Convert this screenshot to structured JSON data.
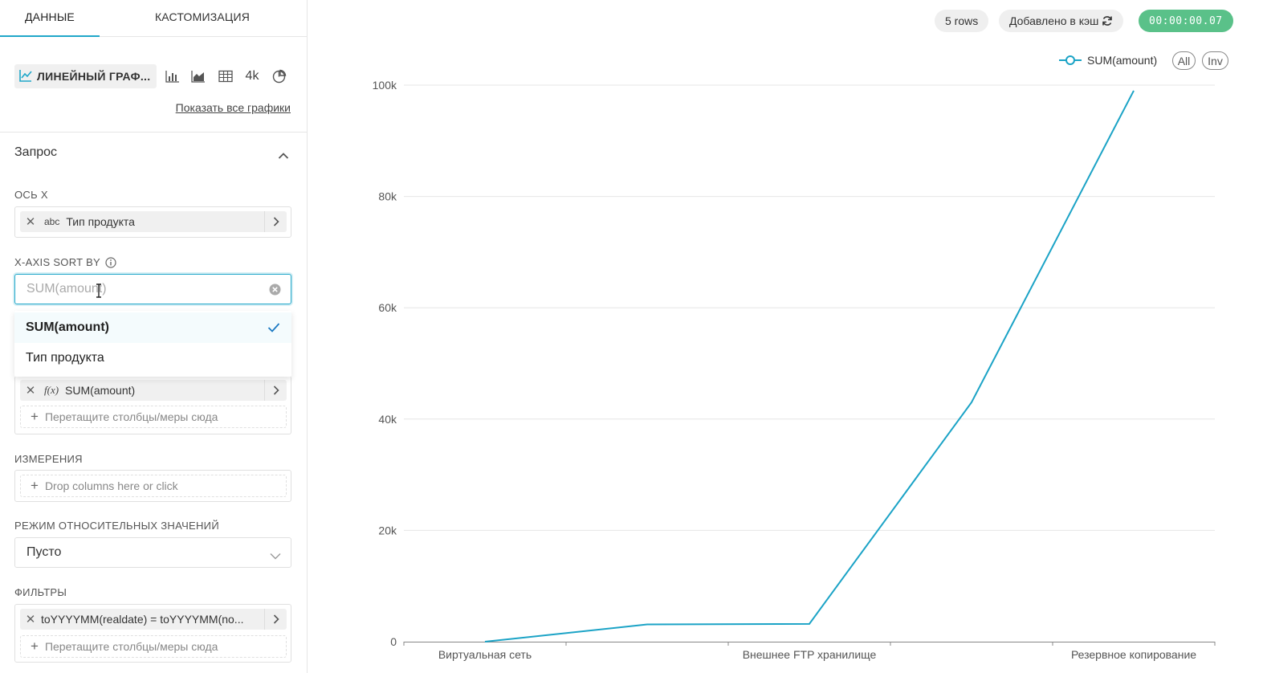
{
  "tabs": [
    {
      "label": "ДАННЫЕ"
    },
    {
      "label": "КАСТОМИЗАЦИЯ"
    }
  ],
  "viz": {
    "selected_label": "ЛИНЕЙНЫЙ ГРАФ...",
    "icons": [
      "bar-chart-icon",
      "area-chart-icon",
      "table-icon",
      "big-number-icon",
      "pie-chart-icon"
    ],
    "big_number_text": "4k",
    "show_all": "Показать все графики"
  },
  "query": {
    "title": "Запрос",
    "x_axis": {
      "label": "ОСЬ X",
      "type_tag": "abc",
      "value": "Тип продукта"
    },
    "x_axis_sort": {
      "label": "X-AXIS SORT BY",
      "placeholder": "SUM(amount)",
      "options": [
        "SUM(amount)",
        "Тип продукта"
      ],
      "selected": "SUM(amount)"
    },
    "metrics": {
      "type_tag": "f(x)",
      "value": "SUM(amount)",
      "drop_text": "Перетащите столбцы/меры сюда"
    },
    "dimensions": {
      "label": "ИЗМЕРЕНИЯ",
      "drop_text": "Drop columns here or click"
    },
    "relative_mode": {
      "label": "РЕЖИМ ОТНОСИТЕЛЬНЫХ ЗНАЧЕНИЙ",
      "value": "Пусто"
    },
    "filters": {
      "label": "ФИЛЬТРЫ",
      "value": "toYYYYMM(realdate) = toYYYYMM(no...",
      "drop_text": "Перетащите столбцы/меры сюда"
    }
  },
  "status": {
    "rows": "5 rows",
    "cache": "Добавлено в кэш",
    "timer": "00:00:00.07"
  },
  "legend": {
    "series_name": "SUM(amount)",
    "all_label": "All",
    "inv_label": "Inv"
  },
  "colors": {
    "accent": "#20a7c9",
    "series": "#1ba3c6",
    "timer_bg": "#5ac189"
  },
  "chart_data": {
    "type": "line",
    "categories": [
      "Виртуальная сеть",
      "",
      "Внешнее FTP хранилище",
      "",
      "Резервное копирование"
    ],
    "x_tick_labels": [
      "Виртуальная сеть",
      "Внешнее FTP хранилище",
      "Резервное копирование"
    ],
    "series": [
      {
        "name": "SUM(amount)",
        "values": [
          0,
          3100,
          3200,
          43000,
          99000
        ]
      }
    ],
    "y_ticks": [
      "0",
      "20k",
      "40k",
      "60k",
      "80k",
      "100k"
    ],
    "ylim": [
      0,
      100000
    ],
    "grid": true,
    "legend_position": "top-right"
  }
}
